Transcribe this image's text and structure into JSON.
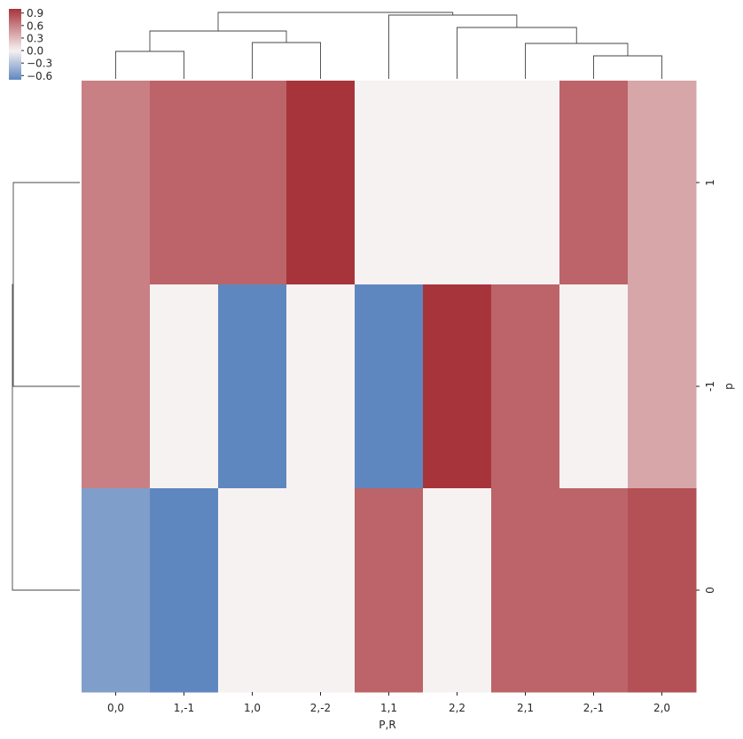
{
  "chart_data": {
    "type": "heatmap",
    "title": "",
    "xlabel": "P,R",
    "ylabel": "p",
    "x_categories": [
      "0,0",
      "1,-1",
      "1,0",
      "2,-2",
      "1,1",
      "2,2",
      "2,1",
      "2,-1",
      "2,0"
    ],
    "y_categories": [
      "1",
      "-1",
      "0"
    ],
    "values": [
      [
        0.6,
        0.75,
        0.75,
        1.0,
        0.0,
        0.0,
        0.0,
        0.75,
        0.4
      ],
      [
        0.6,
        0.0,
        -0.7,
        0.0,
        -0.7,
        1.0,
        0.75,
        0.0,
        0.4
      ],
      [
        -0.55,
        -0.7,
        0.0,
        0.0,
        0.75,
        0.0,
        0.75,
        0.75,
        0.85
      ]
    ],
    "colorbar": {
      "vmin": -0.7,
      "vmax": 1.0,
      "ticks": [
        0.9,
        0.6,
        0.3,
        0.0,
        -0.3,
        -0.6
      ],
      "tick_labels": [
        "0.9",
        "0.6",
        "0.3",
        "0.0",
        "−0.3",
        "−0.6"
      ],
      "colormap": "diverging blue-white-red",
      "low_color": "#5f87bf",
      "mid_color": "#f7f2f2",
      "high_color": "#a8343b"
    },
    "dendrograms": [
      "columns-top",
      "rows-left"
    ],
    "grid": false
  }
}
